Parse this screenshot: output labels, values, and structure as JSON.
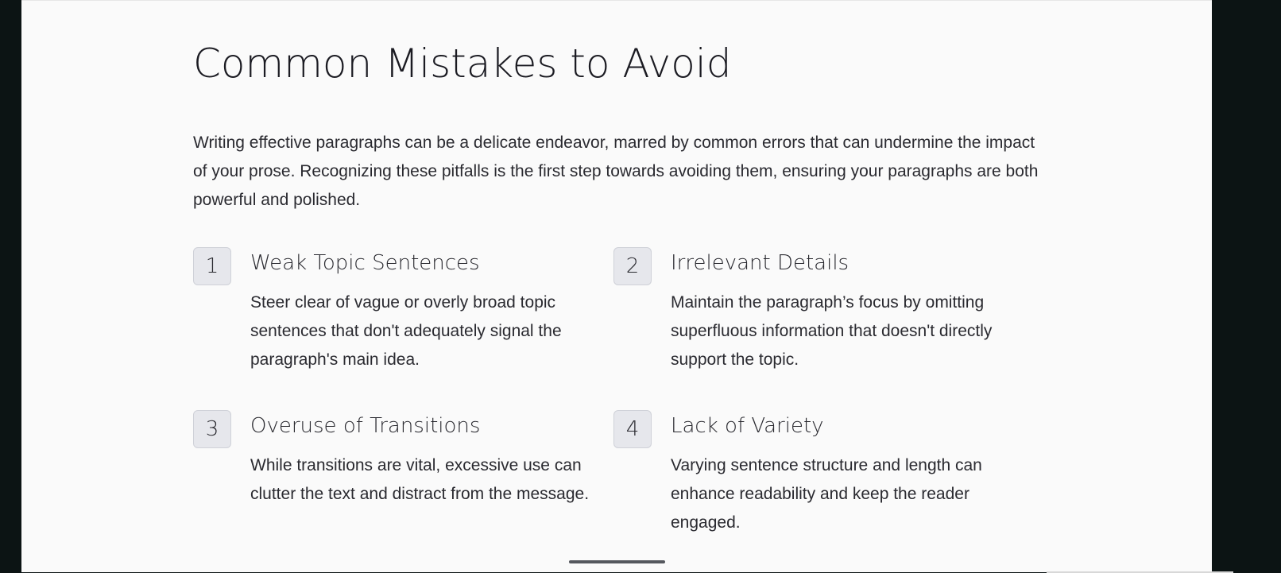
{
  "section": {
    "title": "Common Mistakes to Avoid",
    "intro": "Writing effective paragraphs can be a delicate endeavor, marred by common errors that can undermine the impact of your prose. Recognizing these pitfalls is the first step towards avoiding them, ensuring your paragraphs are both powerful and polished."
  },
  "mistakes": [
    {
      "number": "1",
      "title": "Weak Topic Sentences",
      "text": "Steer clear of vague or overly broad topic sentences that don't adequately signal the paragraph's main idea."
    },
    {
      "number": "2",
      "title": "Irrelevant Details",
      "text": "Maintain the paragraph’s focus by omitting superfluous information that doesn't directly support the topic."
    },
    {
      "number": "3",
      "title": "Overuse of Transitions",
      "text": "While transitions are vital, excessive use can clutter the text and distract from the message."
    },
    {
      "number": "4",
      "title": "Lack of Variety",
      "text": "Varying sentence structure and length can enhance readability and keep the reader engaged."
    }
  ],
  "colors": {
    "background": "#fafafa",
    "text": "#2a2a30",
    "badge_bg": "#e6e7ec",
    "frame": "#0c1414"
  }
}
